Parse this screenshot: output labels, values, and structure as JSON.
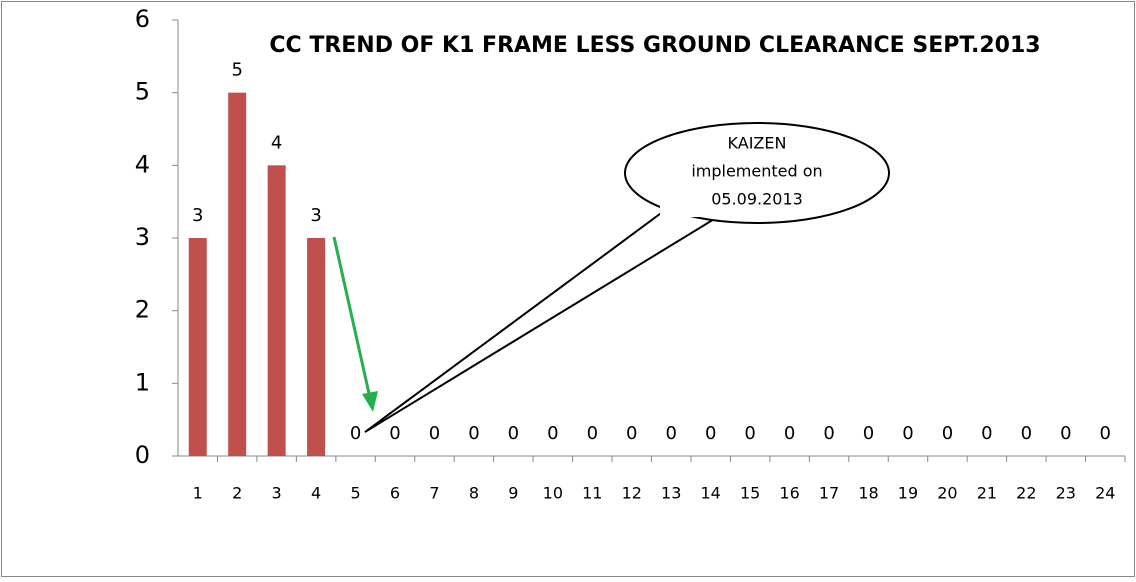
{
  "chart_data": {
    "type": "bar",
    "title": "CC TREND OF K1 FRAME LESS GROUND CLEARANCE SEPT.2013",
    "categories": [
      1,
      2,
      3,
      4,
      5,
      6,
      7,
      8,
      9,
      10,
      11,
      12,
      13,
      14,
      15,
      16,
      17,
      18,
      19,
      20,
      21,
      22,
      23,
      24
    ],
    "values": [
      3,
      5,
      4,
      3,
      0,
      0,
      0,
      0,
      0,
      0,
      0,
      0,
      0,
      0,
      0,
      0,
      0,
      0,
      0,
      0,
      0,
      0,
      0,
      0
    ],
    "color": "#c0504d",
    "ylim": [
      0,
      6
    ],
    "yticks": [
      0,
      1,
      2,
      3,
      4,
      5,
      6
    ],
    "annotation": [
      "KAIZEN",
      "implemented on",
      "05.09.2013"
    ]
  }
}
